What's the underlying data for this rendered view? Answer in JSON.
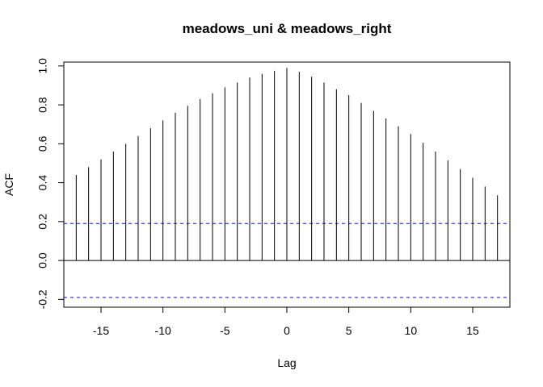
{
  "chart_data": {
    "type": "bar",
    "title": "meadows_uni & meadows_right",
    "xlabel": "Lag",
    "ylabel": "ACF",
    "xlim": [
      -18,
      18
    ],
    "ylim": [
      -0.24,
      1.02
    ],
    "x_ticks": [
      -15,
      -10,
      -5,
      0,
      5,
      10,
      15
    ],
    "x_tick_labels": [
      "-15",
      "-10",
      "-5",
      "0",
      "5",
      "10",
      "15"
    ],
    "y_ticks": [
      -0.2,
      0.0,
      0.2,
      0.4,
      0.6,
      0.8,
      1.0
    ],
    "y_tick_labels": [
      "-0.2",
      "0.0",
      "0.2",
      "0.4",
      "0.6",
      "0.8",
      "1.0"
    ],
    "lags": [
      -17,
      -16,
      -15,
      -14,
      -13,
      -12,
      -11,
      -10,
      -9,
      -8,
      -7,
      -6,
      -5,
      -4,
      -3,
      -2,
      -1,
      0,
      1,
      2,
      3,
      4,
      5,
      6,
      7,
      8,
      9,
      10,
      11,
      12,
      13,
      14,
      15,
      16,
      17
    ],
    "values": [
      0.44,
      0.48,
      0.52,
      0.56,
      0.6,
      0.64,
      0.68,
      0.72,
      0.76,
      0.795,
      0.83,
      0.86,
      0.89,
      0.915,
      0.94,
      0.96,
      0.975,
      0.99,
      0.97,
      0.945,
      0.915,
      0.88,
      0.85,
      0.81,
      0.77,
      0.73,
      0.69,
      0.65,
      0.605,
      0.56,
      0.515,
      0.47,
      0.425,
      0.38,
      0.335
    ],
    "confidence_bounds": [
      0.19,
      -0.19
    ],
    "grid": false,
    "colors": {
      "bars": "#000000",
      "zero_line": "#000000",
      "confidence": "#0000ff"
    }
  }
}
